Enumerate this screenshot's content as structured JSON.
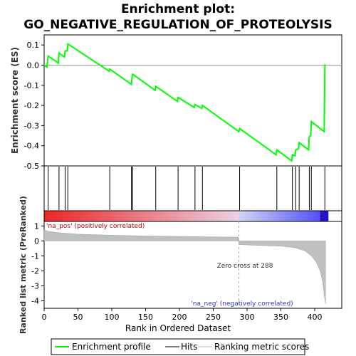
{
  "title_line1": "Enrichment plot:",
  "title_line2": "GO_NEGATIVE_REGULATION_OF_PROTEOLYSIS",
  "chart_data": {
    "type": "line",
    "es_panel": {
      "ylabel": "Enrichment score (ES)",
      "ylim": [
        -0.5,
        0.15
      ],
      "yticks": [
        "0.1",
        "0.0",
        "-0.1",
        "-0.2",
        "-0.3",
        "-0.4",
        "-0.5"
      ],
      "ytick_values": [
        0.1,
        0.0,
        -0.1,
        -0.2,
        -0.3,
        -0.4,
        -0.5
      ],
      "series_name": "Enrichment profile",
      "color": "#00ff00",
      "points": [
        [
          0,
          0.0
        ],
        [
          4,
          -0.01
        ],
        [
          6,
          0.045
        ],
        [
          21,
          0.01
        ],
        [
          22,
          0.06
        ],
        [
          30,
          0.04
        ],
        [
          31,
          0.07
        ],
        [
          34,
          0.07
        ],
        [
          35,
          0.105
        ],
        [
          96,
          -0.03
        ],
        [
          97,
          -0.02
        ],
        [
          129,
          -0.095
        ],
        [
          130,
          -0.06
        ],
        [
          131,
          -0.045
        ],
        [
          164,
          -0.125
        ],
        [
          165,
          -0.105
        ],
        [
          197,
          -0.18
        ],
        [
          198,
          -0.16
        ],
        [
          222,
          -0.21
        ],
        [
          223,
          -0.195
        ],
        [
          233,
          -0.215
        ],
        [
          234,
          -0.2
        ],
        [
          288,
          -0.33
        ],
        [
          289,
          -0.315
        ],
        [
          343,
          -0.445
        ],
        [
          344,
          -0.42
        ],
        [
          366,
          -0.475
        ],
        [
          367,
          -0.445
        ],
        [
          371,
          -0.45
        ],
        [
          372,
          -0.42
        ],
        [
          376,
          -0.415
        ],
        [
          377,
          -0.385
        ],
        [
          391,
          -0.42
        ],
        [
          392,
          -0.355
        ],
        [
          394,
          -0.35
        ],
        [
          395,
          -0.28
        ],
        [
          414,
          -0.33
        ],
        [
          415,
          0.005
        ]
      ]
    },
    "hits": [
      6,
      22,
      31,
      35,
      97,
      129,
      131,
      165,
      198,
      223,
      234,
      289,
      344,
      367,
      372,
      377,
      392,
      395,
      415
    ],
    "rank_panel": {
      "ylabel": "Ranked list metric (PreRanked)",
      "xlabel": "Rank in Ordered Dataset",
      "xlim": [
        0,
        440
      ],
      "xticks": [
        "0",
        "50",
        "100",
        "150",
        "200",
        "250",
        "300",
        "350",
        "400"
      ],
      "xtick_values": [
        0,
        50,
        100,
        150,
        200,
        250,
        300,
        350,
        400
      ],
      "ylim": [
        -4.5,
        1.3
      ],
      "yticks": [
        "1",
        "0",
        "-1",
        "-2",
        "-3",
        "-4"
      ],
      "ytick_values": [
        1,
        0,
        -1,
        -2,
        -3,
        -4
      ],
      "zero_cross": 288,
      "zero_cross_label": "Zero cross at 288",
      "pos_label": "'na_pos' (positively correlated)",
      "neg_label": "'na_neg' (negatively correlated)",
      "metric_points": [
        [
          0,
          0.75
        ],
        [
          5,
          0.65
        ],
        [
          20,
          0.55
        ],
        [
          50,
          0.45
        ],
        [
          100,
          0.38
        ],
        [
          150,
          0.33
        ],
        [
          200,
          0.3
        ],
        [
          250,
          0.27
        ],
        [
          287,
          0.25
        ],
        [
          288,
          -0.25
        ],
        [
          320,
          -0.3
        ],
        [
          350,
          -0.35
        ],
        [
          370,
          -0.45
        ],
        [
          385,
          -0.65
        ],
        [
          395,
          -1.0
        ],
        [
          402,
          -1.4
        ],
        [
          408,
          -2.0
        ],
        [
          412,
          -2.8
        ],
        [
          414,
          -3.6
        ],
        [
          416,
          -4.2
        ]
      ]
    },
    "legend": {
      "placement": "bottom",
      "items": [
        {
          "label": "Enrichment profile",
          "color": "#00ff00"
        },
        {
          "label": "Hits",
          "color": "#000000"
        },
        {
          "label": "Ranking metric scores",
          "color": "#bbbbbb"
        }
      ]
    }
  }
}
